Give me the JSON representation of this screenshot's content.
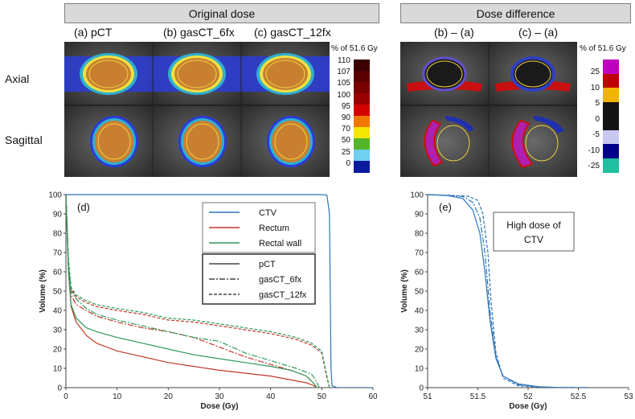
{
  "headers": {
    "original": "Original dose",
    "difference": "Dose difference"
  },
  "columns": {
    "a": "(a) pCT",
    "b": "(b) gasCT_6fx",
    "c": "(c) gasCT_12fx",
    "ba": "(b) – (a)",
    "ca": "(c) – (a)"
  },
  "rows": {
    "axial": "Axial",
    "sagittal": "Sagittal"
  },
  "dose_scale": {
    "unit": "% of 51.6 Gy",
    "ticks": [
      "110",
      "107",
      "105",
      "100",
      "95",
      "90",
      "70",
      "50",
      "25",
      "0"
    ],
    "colors": [
      "#3a0000",
      "#5a0000",
      "#7a0000",
      "#9b0000",
      "#d40000",
      "#f07800",
      "#f5e600",
      "#55b52a",
      "#70d0f0",
      "#0a1a9c"
    ]
  },
  "diff_scale": {
    "unit": "% of 51.6 Gy",
    "ticks": [
      "25",
      "10",
      "5",
      "0",
      "-5",
      "-10",
      "-25"
    ],
    "colors": [
      "#c000c0",
      "#c00000",
      "#f0b400",
      "#141414",
      "#141414",
      "#c8c8f0",
      "#00008a",
      "#20c0a0"
    ]
  },
  "chart_data": [
    {
      "type": "line",
      "panel": "(d)",
      "xlabel": "Dose (Gy)",
      "ylabel": "Volume (%)",
      "xlim": [
        0,
        60
      ],
      "ylim": [
        0,
        100
      ],
      "xticks": [
        "0",
        "10",
        "20",
        "30",
        "40",
        "50",
        "60"
      ],
      "yticks": [
        "0",
        "10",
        "20",
        "30",
        "40",
        "50",
        "60",
        "70",
        "80",
        "90",
        "100"
      ],
      "legend_structures": [
        {
          "name": "CTV",
          "color": "#2e75b6"
        },
        {
          "name": "Rectum",
          "color": "#c0392b"
        },
        {
          "name": "Rectal wall",
          "color": "#2e9a5a"
        }
      ],
      "legend_scans": [
        {
          "name": "pCT",
          "dash": "solid"
        },
        {
          "name": "gasCT_6fx",
          "dash": "dashdot"
        },
        {
          "name": "gasCT_12fx",
          "dash": "dashed"
        }
      ],
      "series": [
        {
          "name": "CTV pCT",
          "color": "#2e75b6",
          "dash": "solid",
          "x": [
            0,
            50,
            51,
            51.5,
            51.8,
            52,
            53,
            60
          ],
          "y": [
            100,
            100,
            99.8,
            90,
            10,
            1,
            0,
            0
          ]
        },
        {
          "name": "Rectum pCT",
          "color": "#c0392b",
          "dash": "solid",
          "x": [
            0,
            0.5,
            1,
            2,
            4,
            6,
            10,
            15,
            20,
            25,
            30,
            35,
            40,
            44,
            47,
            48.5,
            49
          ],
          "y": [
            100,
            60,
            42,
            34,
            27,
            23,
            19,
            16,
            13,
            11,
            9,
            7.5,
            6,
            4,
            2.5,
            1,
            0
          ]
        },
        {
          "name": "Rectum gasCT_6fx",
          "color": "#c0392b",
          "dash": "dashdot",
          "x": [
            0,
            0.5,
            1,
            2,
            4,
            6,
            10,
            15,
            20,
            25,
            30,
            35,
            40,
            44,
            47,
            48.5,
            49
          ],
          "y": [
            100,
            62,
            48,
            43,
            40,
            37,
            34,
            31,
            29,
            26,
            21,
            16,
            12,
            9,
            6,
            2,
            0
          ]
        },
        {
          "name": "Rectum gasCT_12fx",
          "color": "#c0392b",
          "dash": "dashed",
          "x": [
            0,
            0.5,
            1,
            2,
            4,
            6,
            10,
            15,
            20,
            25,
            30,
            35,
            40,
            45,
            48,
            50,
            51,
            51.5
          ],
          "y": [
            100,
            65,
            51,
            47,
            44,
            42,
            40,
            38,
            35,
            34,
            32,
            30,
            28,
            25,
            22,
            18,
            5,
            0
          ]
        },
        {
          "name": "Rectal wall pCT",
          "color": "#2e9a5a",
          "dash": "solid",
          "x": [
            0,
            0.5,
            1,
            2,
            4,
            6,
            10,
            15,
            20,
            25,
            30,
            35,
            40,
            44,
            47,
            48.5,
            49
          ],
          "y": [
            100,
            60,
            43,
            36,
            31,
            29,
            26,
            23,
            20,
            17,
            15,
            13,
            11,
            9,
            6,
            2,
            0
          ]
        },
        {
          "name": "Rectal wall gasCT_6fx",
          "color": "#2e9a5a",
          "dash": "dashdot",
          "x": [
            0,
            0.5,
            1,
            2,
            4,
            6,
            10,
            15,
            20,
            25,
            30,
            35,
            40,
            45,
            48,
            49,
            49.5
          ],
          "y": [
            100,
            63,
            50,
            46,
            41,
            38,
            35,
            32,
            29,
            26,
            24,
            18,
            14,
            10,
            7,
            3,
            0
          ]
        },
        {
          "name": "Rectal wall gasCT_12fx",
          "color": "#2e9a5a",
          "dash": "dashed",
          "x": [
            0,
            0.5,
            1,
            2,
            4,
            6,
            10,
            15,
            20,
            25,
            30,
            35,
            40,
            45,
            48,
            50,
            51,
            51.5
          ],
          "y": [
            100,
            66,
            52,
            48,
            45,
            43,
            41,
            39,
            36,
            35,
            33,
            31,
            29,
            26,
            23,
            19,
            6,
            0
          ]
        }
      ]
    },
    {
      "type": "line",
      "panel": "(e)",
      "annotation": "High dose of CTV",
      "xlabel": "Dose (Gy)",
      "ylabel": "Volume (%)",
      "xlim": [
        51,
        53
      ],
      "ylim": [
        0,
        100
      ],
      "xticks": [
        "51",
        "51.5",
        "52",
        "52.5",
        "53"
      ],
      "yticks": [
        "0",
        "10",
        "20",
        "30",
        "40",
        "50",
        "60",
        "70",
        "80",
        "90",
        "100"
      ],
      "series": [
        {
          "name": "CTV pCT",
          "color": "#2e75b6",
          "dash": "solid",
          "x": [
            51,
            51.2,
            51.35,
            51.45,
            51.52,
            51.57,
            51.62,
            51.68,
            51.75,
            51.9,
            52.1,
            52.3,
            52.6
          ],
          "y": [
            100,
            99.5,
            98,
            92,
            80,
            60,
            35,
            15,
            6,
            2,
            0.5,
            0.1,
            0
          ]
        },
        {
          "name": "CTV gasCT_6fx",
          "color": "#2e75b6",
          "dash": "dashdot",
          "x": [
            51,
            51.2,
            51.35,
            51.45,
            51.52,
            51.57,
            51.62,
            51.68,
            51.75,
            51.9,
            52.1,
            52.3,
            52.6
          ],
          "y": [
            100,
            99.6,
            99,
            96,
            88,
            70,
            40,
            16,
            6,
            1.5,
            0.4,
            0.1,
            0
          ]
        },
        {
          "name": "CTV gasCT_12fx",
          "color": "#2e75b6",
          "dash": "dashed",
          "x": [
            51,
            51.2,
            51.4,
            51.5,
            51.55,
            51.6,
            51.63,
            51.68,
            51.75,
            51.9,
            52.1,
            52.3,
            52.6
          ],
          "y": [
            100,
            99.7,
            99.2,
            97,
            90,
            70,
            45,
            18,
            5,
            1,
            0.3,
            0.1,
            0
          ]
        }
      ]
    }
  ]
}
